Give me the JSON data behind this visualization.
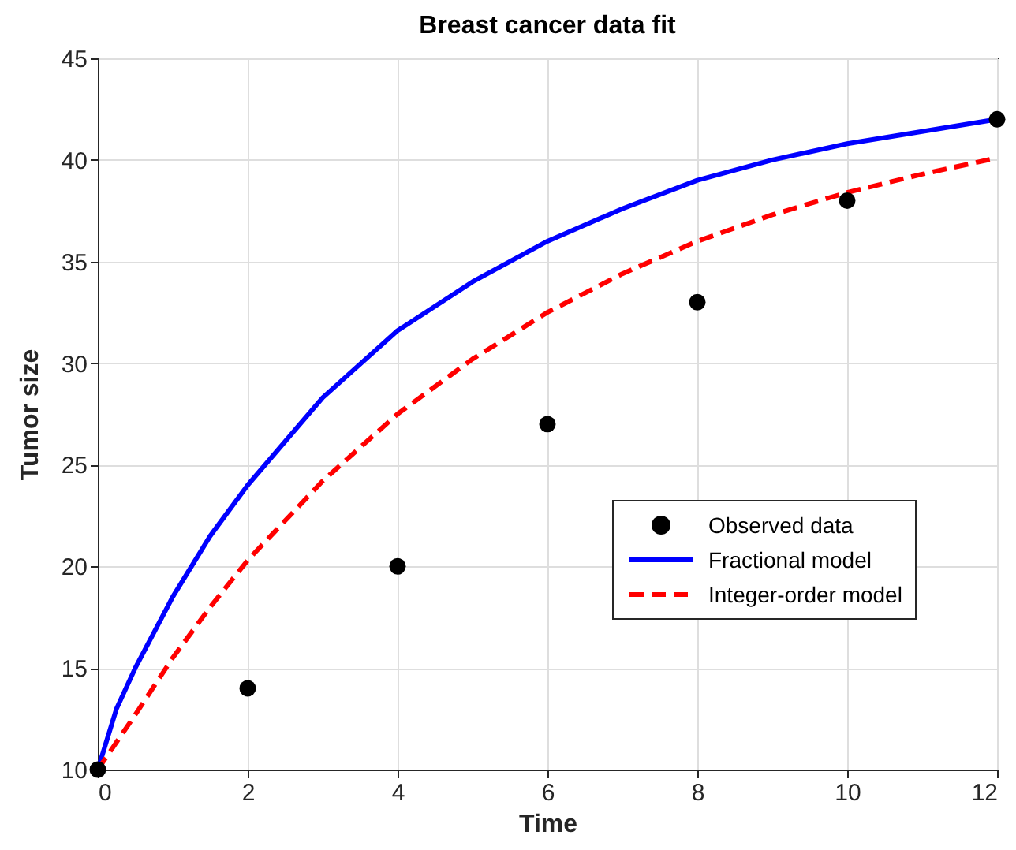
{
  "chart_data": {
    "type": "line",
    "title": "Breast cancer data fit",
    "xlabel": "Time",
    "ylabel": "Tumor size",
    "xlim": [
      0,
      12
    ],
    "xticks": [
      0,
      2,
      4,
      6,
      8,
      10,
      12
    ],
    "ylim": [
      10,
      45
    ],
    "yticks": [
      10,
      15,
      20,
      25,
      30,
      35,
      40,
      45
    ],
    "grid": true,
    "legend": "bottom right",
    "series": [
      {
        "name": "Observed data",
        "type": "scatter",
        "marker": "circle",
        "color": "#000000",
        "x": [
          0,
          2,
          4,
          6,
          8,
          10,
          12
        ],
        "values": [
          10,
          14,
          20,
          27,
          33,
          38,
          42
        ]
      },
      {
        "name": "Fractional model",
        "type": "line",
        "line_style": "solid",
        "color": "#0000ff",
        "x": [
          0,
          0.25,
          0.5,
          1,
          1.5,
          2,
          3,
          4,
          5,
          6,
          7,
          8,
          9,
          10,
          11,
          12
        ],
        "values": [
          10,
          13,
          15,
          18.5,
          21.5,
          24,
          28.3,
          31.6,
          34,
          36,
          37.6,
          39,
          40,
          40.8,
          41.4,
          42
        ]
      },
      {
        "name": "Integer-order model",
        "type": "line",
        "line_style": "dashed",
        "color": "#ff0000",
        "x": [
          0,
          0.5,
          1,
          1.5,
          2,
          3,
          4,
          5,
          6,
          7,
          8,
          9,
          10,
          11,
          12
        ],
        "values": [
          10,
          12.7,
          15.5,
          18,
          20.3,
          24.2,
          27.5,
          30.2,
          32.5,
          34.4,
          36,
          37.3,
          38.4,
          39.3,
          40.1
        ]
      }
    ]
  }
}
